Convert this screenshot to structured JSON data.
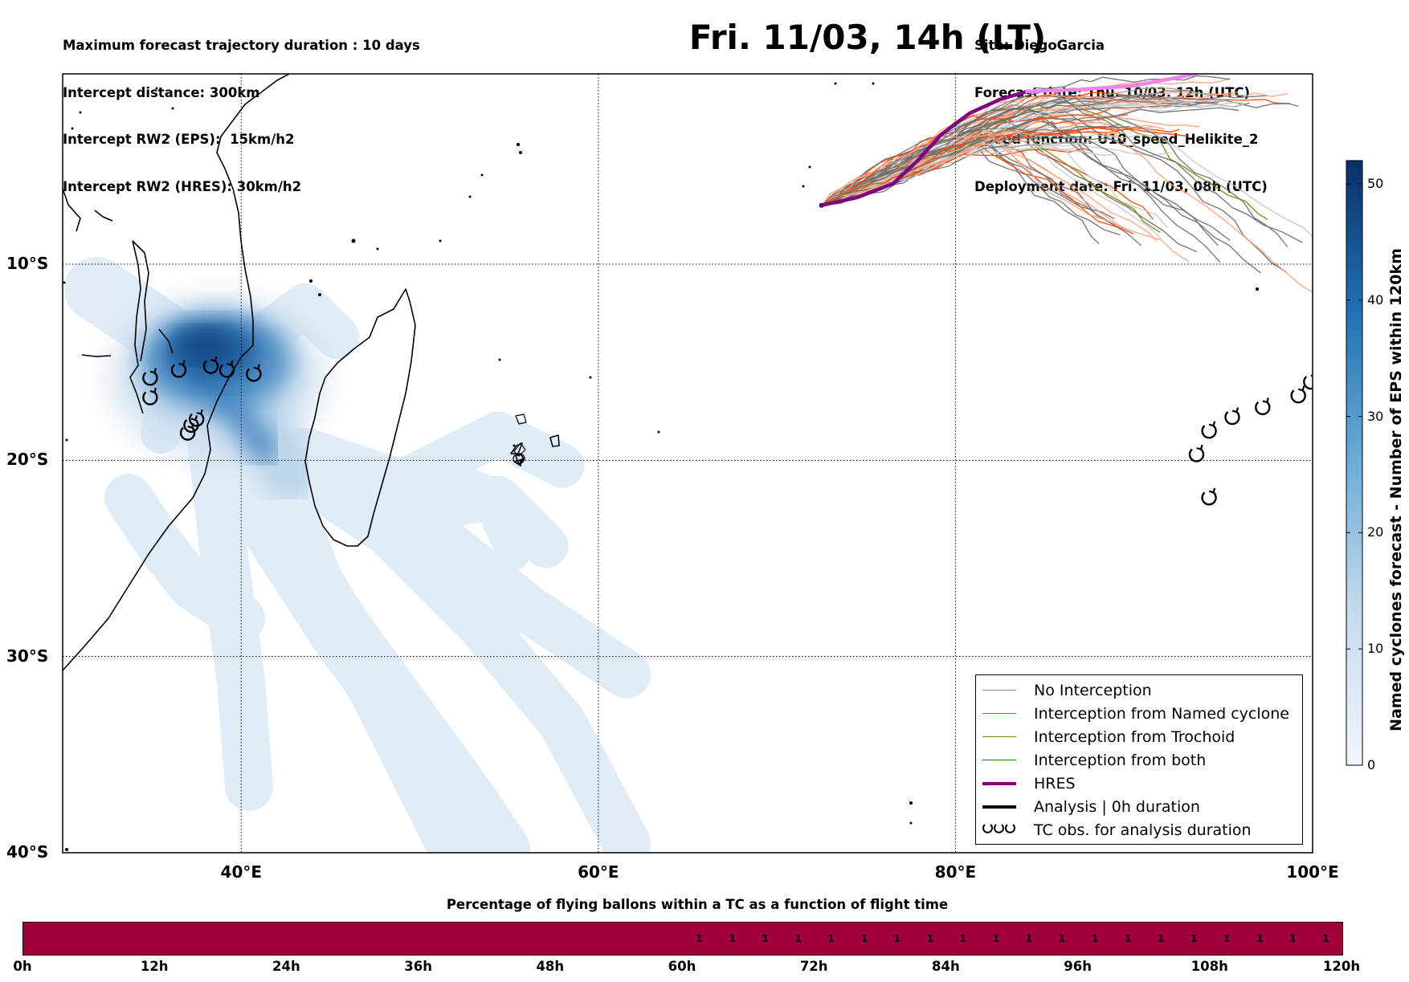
{
  "title": "Fri. 11/03, 14h (LT)",
  "info_left": [
    "Maximum forecast trajectory duration : 10 days",
    "Intercept distance: 300km",
    "Intercept RW2 (EPS):  15km/h2",
    "Intercept RW2 (HRES): 30km/h2"
  ],
  "info_right": [
    "Site: DiegoGarcia",
    "Forecast date: Thu. 10/03, 12h (UTC)",
    "Speed function: U10_speed_Helikite_2",
    "Deployment date: Fri. 11/03, 08h (UTC)"
  ],
  "map": {
    "lon_range": [
      30,
      100
    ],
    "lat_range": [
      -40,
      -0.3
    ],
    "lon_ticks": [
      {
        "value": 40,
        "label": "40°E"
      },
      {
        "value": 60,
        "label": "60°E"
      },
      {
        "value": 80,
        "label": "80°E"
      },
      {
        "value": 100,
        "label": "100°E"
      }
    ],
    "lat_ticks": [
      {
        "value": -10,
        "label": "10°S"
      },
      {
        "value": -20,
        "label": "20°S"
      },
      {
        "value": -30,
        "label": "30°S"
      },
      {
        "value": -40,
        "label": "40°S"
      }
    ],
    "grid": true
  },
  "colorbar": {
    "title": "Named cyclones forecast - Number of EPS within 120km",
    "min": 0,
    "max": 52,
    "ticks": [
      0,
      10,
      20,
      30,
      40,
      50
    ],
    "colors": {
      "low": "#e8f1fa",
      "high": "#08306b"
    }
  },
  "legend": [
    {
      "label": "No Interception",
      "color": "#808080",
      "kind": "thin"
    },
    {
      "label": "Interception from Named cyclone",
      "color": "#ff4500",
      "kind": "thin"
    },
    {
      "label": "Interception from Trochoid",
      "color": "#808000",
      "kind": "thin"
    },
    {
      "label": "Interception from both",
      "color": "#008000",
      "kind": "thin"
    },
    {
      "label": "HRES",
      "color": "#800080",
      "kind": "thick"
    },
    {
      "label": "Analysis | 0h duration",
      "color": "#000000",
      "kind": "thick"
    },
    {
      "label": "TC obs. for analysis duration",
      "color": "#000000",
      "kind": "symbol"
    }
  ],
  "tc_obs": [
    {
      "lon": 34.9,
      "lat": -15.8
    },
    {
      "lon": 36.5,
      "lat": -15.4
    },
    {
      "lon": 38.3,
      "lat": -15.2
    },
    {
      "lon": 39.2,
      "lat": -15.4
    },
    {
      "lon": 40.7,
      "lat": -15.6
    },
    {
      "lon": 34.9,
      "lat": -16.8
    },
    {
      "lon": 37.5,
      "lat": -17.9
    },
    {
      "lon": 37.2,
      "lat": -18.2
    },
    {
      "lon": 37.0,
      "lat": -18.6
    },
    {
      "lon": 93.5,
      "lat": -19.7
    },
    {
      "lon": 94.2,
      "lat": -18.5
    },
    {
      "lon": 95.5,
      "lat": -17.8
    },
    {
      "lon": 97.2,
      "lat": -17.3
    },
    {
      "lon": 99.2,
      "lat": -16.7
    },
    {
      "lon": 99.9,
      "lat": -16.0
    },
    {
      "lon": 94.2,
      "lat": -21.9
    }
  ],
  "hres_track": [
    [
      72.5,
      -7.0
    ],
    [
      74.5,
      -6.6
    ],
    [
      76.5,
      -5.9
    ],
    [
      77.8,
      -4.8
    ],
    [
      79.2,
      -3.4
    ],
    [
      80.8,
      -2.3
    ],
    [
      82.5,
      -1.6
    ],
    [
      84.0,
      -1.2
    ]
  ],
  "hres_track_late": [
    [
      84.0,
      -1.2
    ],
    [
      87.0,
      -1.1
    ],
    [
      90.0,
      -0.9
    ],
    [
      93.5,
      -0.3
    ]
  ],
  "pct_chart": {
    "title": "Percentage of flying ballons within a TC as a function of flight time",
    "x_range": [
      0,
      120
    ],
    "x_ticks": [
      "0h",
      "12h",
      "24h",
      "36h",
      "48h",
      "60h",
      "72h",
      "84h",
      "96h",
      "108h",
      "120h"
    ],
    "empty_until_h": 60,
    "step_h": 3,
    "cell_value": "1",
    "bar_color": "#a0003c"
  }
}
